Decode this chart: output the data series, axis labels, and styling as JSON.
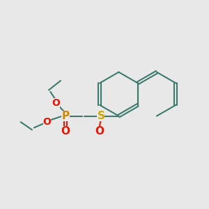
{
  "bg_color": "#e8e8e8",
  "bond_color": "#3d7a6e",
  "p_color": "#cc8800",
  "o_color": "#ee1100",
  "s_color": "#ccaa00",
  "lw": 1.5,
  "fs": 10,
  "xlim": [
    0,
    10
  ],
  "ylim": [
    0,
    10
  ]
}
